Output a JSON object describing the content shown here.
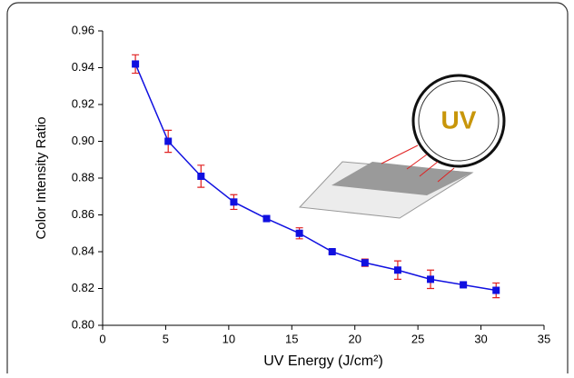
{
  "chart_data": {
    "type": "line",
    "x_label": "UV Energy (J/cm²)",
    "y_label": "Color Intensity Ratio",
    "annotation": "UV",
    "x": [
      2.6,
      5.2,
      7.8,
      10.4,
      13.0,
      15.6,
      18.2,
      20.8,
      23.4,
      26.0,
      28.6,
      31.2
    ],
    "values": [
      0.942,
      0.9,
      0.881,
      0.867,
      0.858,
      0.85,
      0.84,
      0.834,
      0.83,
      0.825,
      0.822,
      0.819
    ],
    "errors": [
      0.005,
      0.006,
      0.006,
      0.004,
      0.001,
      0.003,
      0.001,
      0.002,
      0.005,
      0.005,
      0.001,
      0.004
    ],
    "color": "#1010e0",
    "error_color": "#e02020",
    "xlim": [
      0,
      35
    ],
    "xticks": [
      0,
      5,
      10,
      15,
      20,
      25,
      30,
      35
    ],
    "ylim": [
      0.8,
      0.96
    ],
    "yticks": [
      {
        "value": 0.8,
        "label": "0.80"
      },
      0.82,
      0.84,
      0.86,
      0.88,
      {
        "value": 0.9,
        "label": "0.90"
      },
      0.92,
      0.94,
      0.96
    ]
  }
}
